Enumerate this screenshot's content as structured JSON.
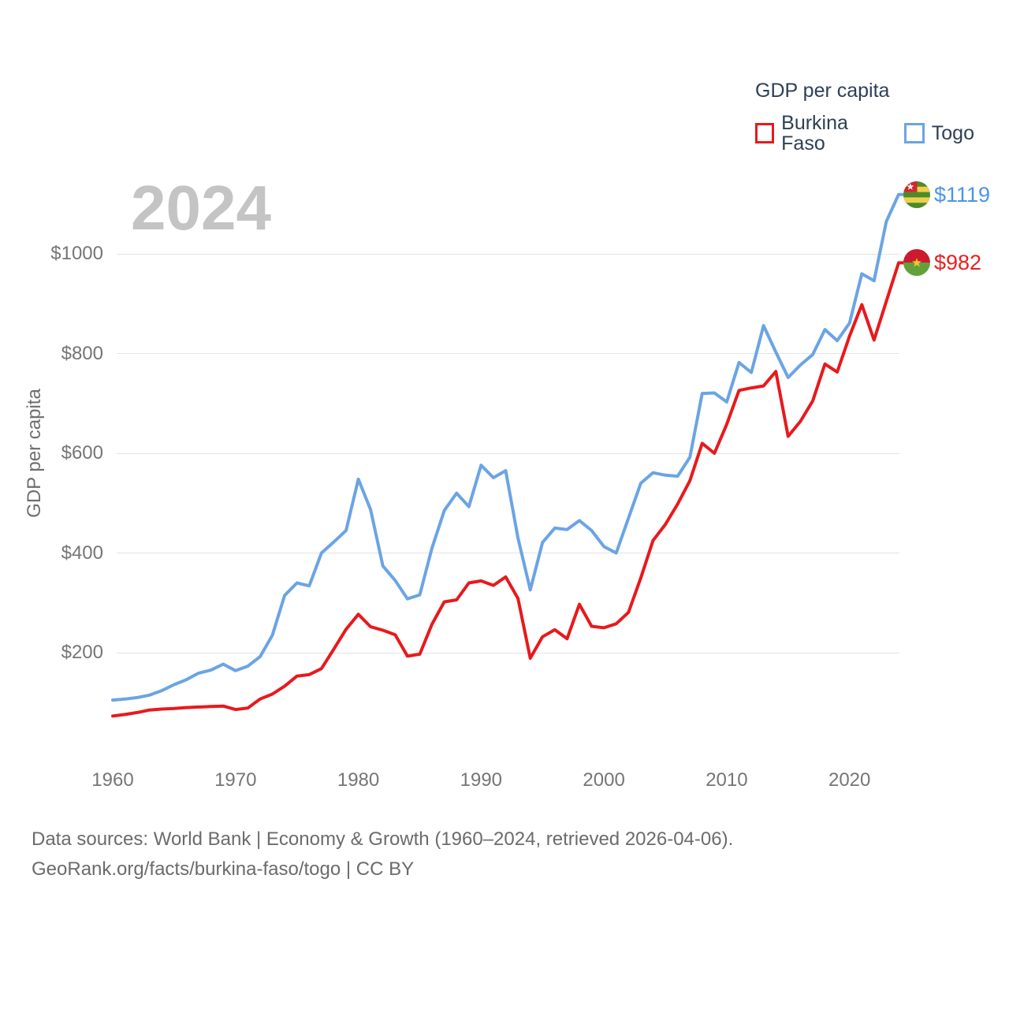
{
  "legend": {
    "title": "GDP per capita",
    "items": [
      {
        "label": "Burkina Faso"
      },
      {
        "label": "Togo"
      }
    ]
  },
  "watermark": "2024",
  "axes": {
    "y_title": "GDP per capita",
    "y_ticks": [
      {
        "value": 200,
        "label": "$200"
      },
      {
        "value": 400,
        "label": "$400"
      },
      {
        "value": 600,
        "label": "$600"
      },
      {
        "value": 800,
        "label": "$800"
      },
      {
        "value": 1000,
        "label": "$1000"
      }
    ],
    "x_ticks": [
      {
        "value": 1960,
        "label": "1960"
      },
      {
        "value": 1970,
        "label": "1970"
      },
      {
        "value": 1980,
        "label": "1980"
      },
      {
        "value": 1990,
        "label": "1990"
      },
      {
        "value": 2000,
        "label": "2000"
      },
      {
        "value": 2010,
        "label": "2010"
      },
      {
        "value": 2020,
        "label": "2020"
      }
    ]
  },
  "chart_data": {
    "type": "line",
    "title": "GDP per capita",
    "xlabel": "",
    "ylabel": "GDP per capita",
    "xlim": [
      1960,
      2024
    ],
    "ylim": [
      0,
      1160
    ],
    "grid": "horizontal",
    "legend_position": "top-right",
    "years": [
      1960,
      1961,
      1962,
      1963,
      1964,
      1965,
      1966,
      1967,
      1968,
      1969,
      1970,
      1971,
      1972,
      1973,
      1974,
      1975,
      1976,
      1977,
      1978,
      1979,
      1980,
      1981,
      1982,
      1983,
      1984,
      1985,
      1986,
      1987,
      1988,
      1989,
      1990,
      1991,
      1992,
      1993,
      1994,
      1995,
      1996,
      1997,
      1998,
      1999,
      2000,
      2001,
      2002,
      2003,
      2004,
      2005,
      2006,
      2007,
      2008,
      2009,
      2010,
      2011,
      2012,
      2013,
      2014,
      2015,
      2016,
      2017,
      2018,
      2019,
      2020,
      2021,
      2022,
      2023,
      2024
    ],
    "series": [
      {
        "name": "Burkina Faso",
        "color": "#e8191c",
        "label_color": "#e8201f",
        "flag": "burkina-faso",
        "end_value": 982,
        "end_label": "$982",
        "values": [
          73,
          76,
          80,
          85,
          87,
          88,
          90,
          91,
          92,
          93,
          86,
          89,
          107,
          117,
          133,
          153,
          156,
          168,
          207,
          247,
          277,
          252,
          245,
          236,
          193,
          197,
          257,
          302,
          306,
          340,
          344,
          335,
          352,
          309,
          189,
          232,
          246,
          228,
          297,
          253,
          250,
          258,
          281,
          350,
          425,
          457,
          498,
          545,
          620,
          600,
          658,
          726,
          731,
          735,
          764,
          634,
          664,
          705,
          779,
          763,
          835,
          898,
          827,
          905,
          982
        ]
      },
      {
        "name": "Togo",
        "color": "#6aa4e5",
        "label_color": "#4b94e8",
        "flag": "togo",
        "end_value": 1119,
        "end_label": "$1119",
        "values": [
          105,
          107,
          110,
          115,
          124,
          136,
          146,
          159,
          165,
          177,
          164,
          173,
          192,
          235,
          315,
          340,
          334,
          400,
          422,
          445,
          548,
          487,
          374,
          345,
          308,
          316,
          410,
          485,
          520,
          493,
          576,
          551,
          565,
          430,
          326,
          421,
          450,
          447,
          465,
          445,
          413,
          400,
          470,
          540,
          561,
          556,
          554,
          592,
          720,
          721,
          703,
          782,
          762,
          856,
          803,
          752,
          777,
          798,
          848,
          826,
          861,
          960,
          946,
          1065,
          1119
        ]
      }
    ]
  },
  "footer": {
    "line1": "Data sources: World Bank | Economy & Growth (1960–2024, retrieved 2026-04-06).",
    "line2": "GeoRank.org/facts/burkina-faso/togo | CC BY"
  },
  "colors": {
    "gridline": "#e3e3e3",
    "tick_text": "#757575",
    "legend_text": "#2e3f54",
    "watermark": "#c4c4c4",
    "footer_text": "#6b6b6b"
  }
}
